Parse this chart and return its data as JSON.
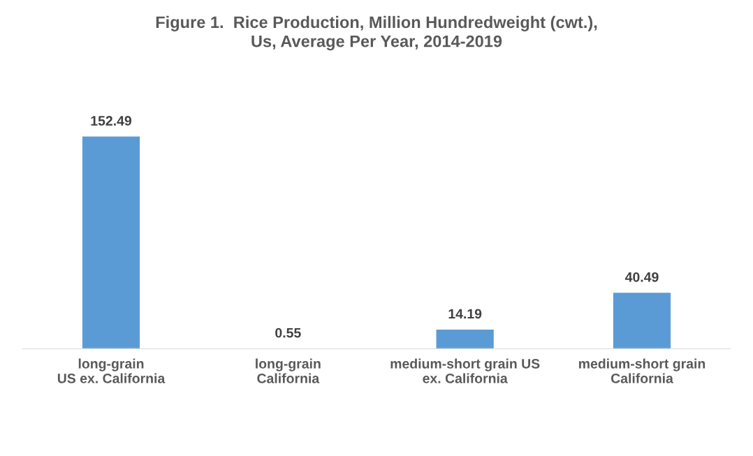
{
  "chart_data": {
    "type": "bar",
    "title": "Figure 1.  Rice Production, Million Hundredweight (cwt.),\nUs, Average Per Year, 2014-2019",
    "categories": [
      "long-grain\nUS ex. California",
      "long-grain\nCalifornia",
      "medium-short grain US\nex. California",
      "medium-short grain\nCalifornia"
    ],
    "values": [
      152.49,
      0.55,
      14.19,
      40.49
    ],
    "color": "#5b9bd5",
    "data_labels": true,
    "grid": false,
    "legend": false
  }
}
